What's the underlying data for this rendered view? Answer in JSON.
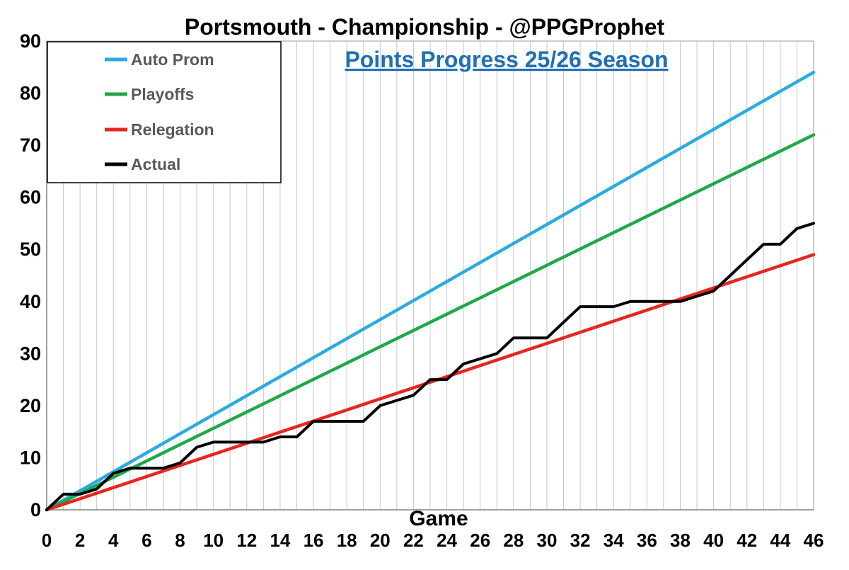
{
  "chart_data": {
    "type": "line",
    "title": "Portsmouth - Championship - @PPGProphet",
    "subtitle": "Points Progress 25/26 Season",
    "xlabel": "Game",
    "ylabel": "",
    "xlim": [
      0,
      46
    ],
    "ylim": [
      0,
      90
    ],
    "x_ticks": [
      0,
      2,
      4,
      6,
      8,
      10,
      12,
      14,
      16,
      18,
      20,
      22,
      24,
      26,
      28,
      30,
      32,
      34,
      36,
      38,
      40,
      42,
      44,
      46
    ],
    "y_ticks": [
      0,
      10,
      20,
      30,
      40,
      50,
      60,
      70,
      80,
      90
    ],
    "grid": "vertical gridlines every game",
    "legend_position": "top-left",
    "series": [
      {
        "name": "Auto Prom",
        "color": "#29abe2",
        "x": [
          0,
          46
        ],
        "y": [
          0,
          84
        ]
      },
      {
        "name": "Playoffs",
        "color": "#1fa84a",
        "x": [
          0,
          46
        ],
        "y": [
          0,
          72
        ]
      },
      {
        "name": "Relegation",
        "color": "#e8251f",
        "x": [
          0,
          46
        ],
        "y": [
          0,
          49
        ]
      },
      {
        "name": "Actual",
        "color": "#000000",
        "x": [
          0,
          1,
          2,
          3,
          4,
          5,
          6,
          7,
          8,
          9,
          10,
          11,
          12,
          13,
          14,
          15,
          16,
          17,
          18,
          19,
          20,
          21,
          22,
          23,
          24,
          25,
          26,
          27,
          28,
          29,
          30,
          31,
          32,
          33,
          34,
          35,
          36,
          37,
          38,
          39,
          40,
          41,
          42,
          43,
          44,
          45,
          46
        ],
        "y": [
          0,
          3,
          3,
          4,
          7,
          8,
          8,
          8,
          9,
          12,
          13,
          13,
          13,
          13,
          14,
          14,
          17,
          17,
          17,
          17,
          20,
          21,
          22,
          25,
          25,
          28,
          29,
          30,
          33,
          33,
          33,
          36,
          39,
          39,
          39,
          40,
          40,
          40,
          40,
          41,
          42,
          45,
          48,
          51,
          51,
          54,
          55
        ]
      }
    ]
  }
}
